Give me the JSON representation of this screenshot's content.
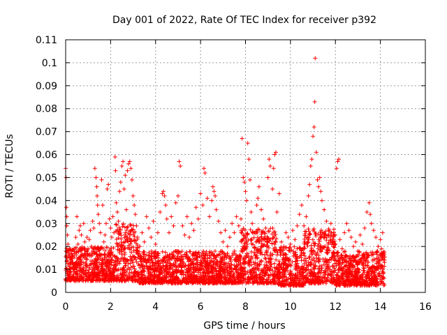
{
  "chart_data": {
    "type": "scatter",
    "title": "Day 001 of 2022, Rate Of TEC Index for receiver p392",
    "xlabel": "GPS time / hours",
    "ylabel": "ROTI / TECUs",
    "xlim": [
      0,
      16
    ],
    "ylim": [
      0,
      0.11
    ],
    "xticks": [
      0,
      2,
      4,
      6,
      8,
      10,
      12,
      14,
      16
    ],
    "xtick_labels": [
      "0",
      "2",
      "4",
      "6",
      "8",
      "10",
      "12",
      "14",
      "16"
    ],
    "yticks": [
      0,
      0.01,
      0.02,
      0.03,
      0.04,
      0.05,
      0.06,
      0.07,
      0.08,
      0.09,
      0.1,
      0.11
    ],
    "ytick_labels": [
      "0",
      "0.01",
      "0.02",
      "0.03",
      "0.04",
      "0.05",
      "0.06",
      "0.07",
      "0.08",
      "0.09",
      "0.1",
      "0.11"
    ],
    "grid": true,
    "marker": "+",
    "series": [
      {
        "name": "ROTI",
        "color": "#ff0000",
        "points": [
          [
            0.0,
            0.054
          ],
          [
            0.02,
            0.05
          ],
          [
            0.03,
            0.037
          ],
          [
            0.05,
            0.033
          ],
          [
            0.05,
            0.029
          ],
          [
            0.08,
            0.025
          ],
          [
            0.1,
            0.021
          ],
          [
            0.12,
            0.018
          ],
          [
            0.15,
            0.016
          ],
          [
            0.2,
            0.015
          ],
          [
            0.25,
            0.014
          ],
          [
            0.3,
            0.013
          ],
          [
            0.35,
            0.012
          ],
          [
            0.4,
            0.017
          ],
          [
            0.45,
            0.024
          ],
          [
            0.5,
            0.033
          ],
          [
            0.55,
            0.021
          ],
          [
            0.6,
            0.027
          ],
          [
            0.65,
            0.029
          ],
          [
            0.7,
            0.025
          ],
          [
            0.75,
            0.019
          ],
          [
            0.8,
            0.03
          ],
          [
            0.85,
            0.022
          ],
          [
            0.9,
            0.018
          ],
          [
            0.95,
            0.024
          ],
          [
            1.0,
            0.019
          ],
          [
            1.05,
            0.023
          ],
          [
            1.1,
            0.027
          ],
          [
            1.15,
            0.02
          ],
          [
            1.2,
            0.031
          ],
          [
            1.25,
            0.028
          ],
          [
            1.3,
            0.054
          ],
          [
            1.35,
            0.05
          ],
          [
            1.38,
            0.046
          ],
          [
            1.4,
            0.042
          ],
          [
            1.42,
            0.038
          ],
          [
            1.45,
            0.034
          ],
          [
            1.5,
            0.03
          ],
          [
            1.55,
            0.026
          ],
          [
            1.6,
            0.049
          ],
          [
            1.65,
            0.038
          ],
          [
            1.7,
            0.022
          ],
          [
            1.75,
            0.025
          ],
          [
            1.8,
            0.03
          ],
          [
            1.85,
            0.045
          ],
          [
            1.9,
            0.047
          ],
          [
            1.95,
            0.032
          ],
          [
            2.0,
            0.028
          ],
          [
            2.05,
            0.024
          ],
          [
            2.1,
            0.033
          ],
          [
            2.15,
            0.026
          ],
          [
            2.2,
            0.059
          ],
          [
            2.22,
            0.053
          ],
          [
            2.25,
            0.039
          ],
          [
            2.3,
            0.035
          ],
          [
            2.35,
            0.031
          ],
          [
            2.4,
            0.044
          ],
          [
            2.45,
            0.048
          ],
          [
            2.5,
            0.055
          ],
          [
            2.55,
            0.057
          ],
          [
            2.6,
            0.045
          ],
          [
            2.65,
            0.051
          ],
          [
            2.7,
            0.036
          ],
          [
            2.75,
            0.053
          ],
          [
            2.8,
            0.056
          ],
          [
            2.85,
            0.057
          ],
          [
            2.9,
            0.054
          ],
          [
            2.95,
            0.049
          ],
          [
            3.0,
            0.042
          ],
          [
            3.05,
            0.038
          ],
          [
            3.1,
            0.034
          ],
          [
            3.15,
            0.029
          ],
          [
            3.2,
            0.024
          ],
          [
            3.3,
            0.02
          ],
          [
            3.4,
            0.026
          ],
          [
            3.5,
            0.022
          ],
          [
            3.6,
            0.033
          ],
          [
            3.7,
            0.028
          ],
          [
            3.8,
            0.024
          ],
          [
            3.9,
            0.031
          ],
          [
            4.0,
            0.021
          ],
          [
            4.1,
            0.026
          ],
          [
            4.2,
            0.035
          ],
          [
            4.3,
            0.043
          ],
          [
            4.35,
            0.044
          ],
          [
            4.4,
            0.042
          ],
          [
            4.45,
            0.038
          ],
          [
            4.5,
            0.032
          ],
          [
            4.6,
            0.026
          ],
          [
            4.7,
            0.033
          ],
          [
            4.8,
            0.029
          ],
          [
            4.9,
            0.039
          ],
          [
            5.0,
            0.042
          ],
          [
            5.05,
            0.057
          ],
          [
            5.1,
            0.055
          ],
          [
            5.2,
            0.029
          ],
          [
            5.3,
            0.025
          ],
          [
            5.4,
            0.033
          ],
          [
            5.5,
            0.024
          ],
          [
            5.6,
            0.03
          ],
          [
            5.7,
            0.027
          ],
          [
            5.8,
            0.037
          ],
          [
            5.9,
            0.032
          ],
          [
            6.0,
            0.043
          ],
          [
            6.1,
            0.038
          ],
          [
            6.15,
            0.054
          ],
          [
            6.2,
            0.052
          ],
          [
            6.3,
            0.041
          ],
          [
            6.4,
            0.033
          ],
          [
            6.5,
            0.04
          ],
          [
            6.55,
            0.046
          ],
          [
            6.6,
            0.044
          ],
          [
            6.65,
            0.042
          ],
          [
            6.7,
            0.036
          ],
          [
            6.8,
            0.031
          ],
          [
            6.9,
            0.026
          ],
          [
            7.0,
            0.022
          ],
          [
            7.1,
            0.027
          ],
          [
            7.2,
            0.02
          ],
          [
            7.3,
            0.024
          ],
          [
            7.4,
            0.03
          ],
          [
            7.5,
            0.026
          ],
          [
            7.6,
            0.033
          ],
          [
            7.7,
            0.029
          ],
          [
            7.8,
            0.032
          ],
          [
            7.85,
            0.067
          ],
          [
            7.9,
            0.05
          ],
          [
            7.95,
            0.048
          ],
          [
            8.0,
            0.044
          ],
          [
            8.05,
            0.04
          ],
          [
            8.1,
            0.065
          ],
          [
            8.15,
            0.058
          ],
          [
            8.2,
            0.049
          ],
          [
            8.25,
            0.035
          ],
          [
            8.3,
            0.03
          ],
          [
            8.4,
            0.026
          ],
          [
            8.5,
            0.038
          ],
          [
            8.55,
            0.041
          ],
          [
            8.6,
            0.046
          ],
          [
            8.7,
            0.036
          ],
          [
            8.8,
            0.032
          ],
          [
            8.9,
            0.028
          ],
          [
            9.0,
            0.05
          ],
          [
            9.05,
            0.058
          ],
          [
            9.1,
            0.055
          ],
          [
            9.2,
            0.045
          ],
          [
            9.25,
            0.054
          ],
          [
            9.3,
            0.06
          ],
          [
            9.35,
            0.061
          ],
          [
            9.4,
            0.035
          ],
          [
            9.5,
            0.043
          ],
          [
            9.6,
            0.022
          ],
          [
            9.7,
            0.02
          ],
          [
            9.8,
            0.026
          ],
          [
            9.9,
            0.024
          ],
          [
            10.0,
            0.021
          ],
          [
            10.1,
            0.027
          ],
          [
            10.2,
            0.023
          ],
          [
            10.3,
            0.029
          ],
          [
            10.4,
            0.034
          ],
          [
            10.5,
            0.038
          ],
          [
            10.6,
            0.029
          ],
          [
            10.7,
            0.033
          ],
          [
            10.8,
            0.042
          ],
          [
            10.85,
            0.047
          ],
          [
            10.9,
            0.055
          ],
          [
            10.95,
            0.058
          ],
          [
            11.0,
            0.068
          ],
          [
            11.05,
            0.072
          ],
          [
            11.08,
            0.083
          ],
          [
            11.1,
            0.102
          ],
          [
            11.15,
            0.061
          ],
          [
            11.2,
            0.049
          ],
          [
            11.25,
            0.046
          ],
          [
            11.3,
            0.05
          ],
          [
            11.35,
            0.044
          ],
          [
            11.4,
            0.04
          ],
          [
            11.5,
            0.036
          ],
          [
            11.6,
            0.031
          ],
          [
            11.7,
            0.027
          ],
          [
            11.8,
            0.03
          ],
          [
            11.9,
            0.025
          ],
          [
            12.0,
            0.021
          ],
          [
            12.05,
            0.054
          ],
          [
            12.1,
            0.057
          ],
          [
            12.15,
            0.058
          ],
          [
            12.2,
            0.023
          ],
          [
            12.3,
            0.019
          ],
          [
            12.4,
            0.026
          ],
          [
            12.5,
            0.03
          ],
          [
            12.6,
            0.027
          ],
          [
            12.7,
            0.024
          ],
          [
            12.8,
            0.02
          ],
          [
            12.9,
            0.022
          ],
          [
            13.0,
            0.018
          ],
          [
            13.1,
            0.025
          ],
          [
            13.2,
            0.021
          ],
          [
            13.3,
            0.028
          ],
          [
            13.4,
            0.035
          ],
          [
            13.5,
            0.039
          ],
          [
            13.55,
            0.034
          ],
          [
            13.6,
            0.03
          ],
          [
            13.7,
            0.027
          ],
          [
            13.8,
            0.024
          ],
          [
            13.9,
            0.02
          ],
          [
            14.0,
            0.023
          ],
          [
            14.05,
            0.019
          ],
          [
            14.1,
            0.026
          ],
          [
            14.15,
            0.017
          ],
          [
            14.18,
            0.014
          ]
        ],
        "envelopes": [
          {
            "from": 0.0,
            "to": 2.2,
            "low": 0.005,
            "high": 0.02
          },
          {
            "from": 2.2,
            "to": 3.2,
            "low": 0.005,
            "high": 0.03
          },
          {
            "from": 3.2,
            "to": 7.8,
            "low": 0.004,
            "high": 0.018
          },
          {
            "from": 7.8,
            "to": 9.4,
            "low": 0.004,
            "high": 0.028
          },
          {
            "from": 9.4,
            "to": 10.6,
            "low": 0.003,
            "high": 0.02
          },
          {
            "from": 10.6,
            "to": 12.0,
            "low": 0.004,
            "high": 0.028
          },
          {
            "from": 12.0,
            "to": 14.2,
            "low": 0.003,
            "high": 0.018
          }
        ]
      }
    ]
  }
}
